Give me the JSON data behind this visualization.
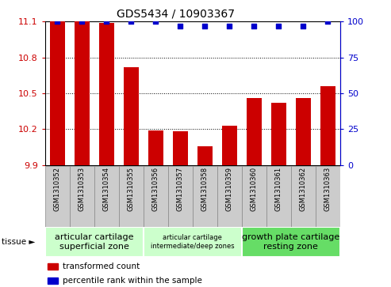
{
  "title": "GDS5434 / 10903367",
  "samples": [
    "GSM1310352",
    "GSM1310353",
    "GSM1310354",
    "GSM1310355",
    "GSM1310356",
    "GSM1310357",
    "GSM1310358",
    "GSM1310359",
    "GSM1310360",
    "GSM1310361",
    "GSM1310362",
    "GSM1310363"
  ],
  "bar_values": [
    11.1,
    11.1,
    11.09,
    10.72,
    10.19,
    10.18,
    10.06,
    10.23,
    10.46,
    10.42,
    10.46,
    10.56
  ],
  "percentile_values": [
    100,
    100,
    100,
    100,
    100,
    97,
    97,
    97,
    97,
    97,
    97,
    100
  ],
  "y_min": 9.9,
  "y_max": 11.1,
  "y_ticks": [
    9.9,
    10.2,
    10.5,
    10.8,
    11.1
  ],
  "y2_ticks": [
    0,
    25,
    50,
    75,
    100
  ],
  "bar_color": "#cc0000",
  "percentile_color": "#0000cc",
  "grid_color": "#000000",
  "tick_label_color_left": "#cc0000",
  "tick_label_color_right": "#0000cc",
  "tissue_groups": [
    {
      "label": "articular cartilage\nsuperficial zone",
      "start": 0,
      "end": 3,
      "color": "#ccffcc",
      "fontsize": 8
    },
    {
      "label": "articular cartilage\nintermediate/deep zones",
      "start": 4,
      "end": 7,
      "color": "#ccffcc",
      "fontsize": 6
    },
    {
      "label": "growth plate cartilage\nresting zone",
      "start": 8,
      "end": 11,
      "color": "#66dd66",
      "fontsize": 8
    }
  ],
  "tissue_label": "tissue",
  "legend_bar_label": "transformed count",
  "legend_pct_label": "percentile rank within the sample",
  "bar_width": 0.6,
  "sample_box_color": "#cccccc",
  "sample_box_edge": "#888888"
}
